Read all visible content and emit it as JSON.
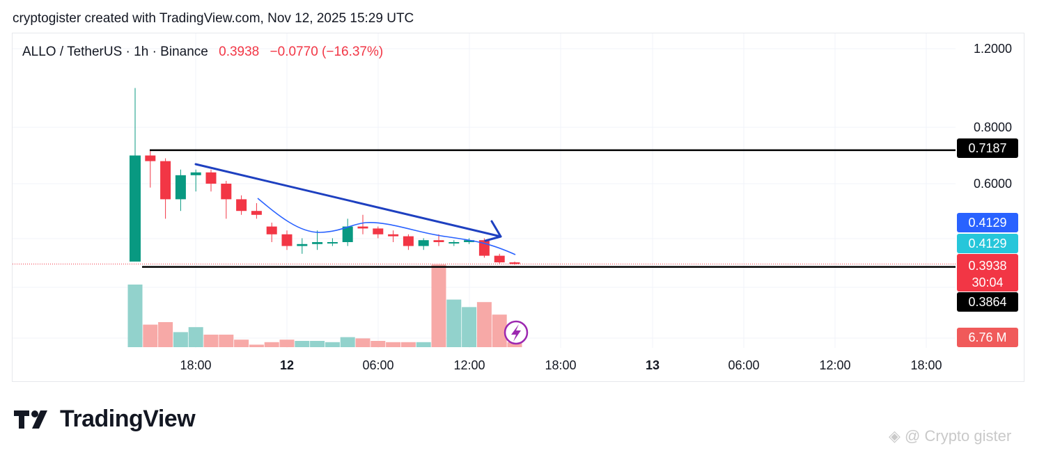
{
  "header": {
    "attribution": "cryptogister created with TradingView.com, Nov 12, 2025 15:29 UTC"
  },
  "legend": {
    "symbol": "ALLO / TetherUS · 1h · Binance",
    "price": "0.3938",
    "change": "−0.0770 (−16.37%)"
  },
  "colors": {
    "up": "#089981",
    "down": "#f23645",
    "up_volume": "#92d2cc",
    "down_volume": "#f7a9a7",
    "trendline": "#1e40c0",
    "ma_line": "#2962ff",
    "level_line": "#000000"
  },
  "chart_data": {
    "type": "candlestick",
    "y_axis_ticks": [
      "1.2000",
      "0.8000",
      "0.6000"
    ],
    "y_axis_tick_values": [
      1.2,
      0.8,
      0.6
    ],
    "x_axis_ticks": [
      {
        "label": "18:00",
        "bold": false
      },
      {
        "label": "12",
        "bold": true
      },
      {
        "label": "06:00",
        "bold": false
      },
      {
        "label": "12:00",
        "bold": false
      },
      {
        "label": "18:00",
        "bold": false
      },
      {
        "label": "13",
        "bold": true
      },
      {
        "label": "06:00",
        "bold": false
      },
      {
        "label": "12:00",
        "bold": false
      },
      {
        "label": "18:00",
        "bold": false
      }
    ],
    "candles": [
      {
        "o": 0.4,
        "h": 1.0,
        "l": 0.4,
        "c": 0.7,
        "v": 0.25
      },
      {
        "o": 0.7,
        "h": 0.72,
        "l": 0.59,
        "c": 0.68,
        "v": 0.09
      },
      {
        "o": 0.68,
        "h": 0.69,
        "l": 0.51,
        "c": 0.56,
        "v": 0.1
      },
      {
        "o": 0.56,
        "h": 0.65,
        "l": 0.53,
        "c": 0.63,
        "v": 0.06
      },
      {
        "o": 0.63,
        "h": 0.65,
        "l": 0.58,
        "c": 0.64,
        "v": 0.08
      },
      {
        "o": 0.64,
        "h": 0.65,
        "l": 0.58,
        "c": 0.6,
        "v": 0.05
      },
      {
        "o": 0.6,
        "h": 0.61,
        "l": 0.51,
        "c": 0.56,
        "v": 0.05
      },
      {
        "o": 0.56,
        "h": 0.57,
        "l": 0.52,
        "c": 0.53,
        "v": 0.03
      },
      {
        "o": 0.53,
        "h": 0.55,
        "l": 0.51,
        "c": 0.52,
        "v": 0.01
      },
      {
        "o": 0.49,
        "h": 0.5,
        "l": 0.45,
        "c": 0.47,
        "v": 0.02
      },
      {
        "o": 0.47,
        "h": 0.48,
        "l": 0.43,
        "c": 0.44,
        "v": 0.03
      },
      {
        "o": 0.44,
        "h": 0.46,
        "l": 0.42,
        "c": 0.445,
        "v": 0.025
      },
      {
        "o": 0.445,
        "h": 0.48,
        "l": 0.43,
        "c": 0.45,
        "v": 0.025
      },
      {
        "o": 0.45,
        "h": 0.46,
        "l": 0.44,
        "c": 0.45,
        "v": 0.02
      },
      {
        "o": 0.45,
        "h": 0.51,
        "l": 0.44,
        "c": 0.49,
        "v": 0.04
      },
      {
        "o": 0.49,
        "h": 0.52,
        "l": 0.47,
        "c": 0.485,
        "v": 0.035
      },
      {
        "o": 0.485,
        "h": 0.49,
        "l": 0.46,
        "c": 0.47,
        "v": 0.025
      },
      {
        "o": 0.47,
        "h": 0.48,
        "l": 0.45,
        "c": 0.465,
        "v": 0.02
      },
      {
        "o": 0.465,
        "h": 0.47,
        "l": 0.43,
        "c": 0.44,
        "v": 0.02
      },
      {
        "o": 0.44,
        "h": 0.46,
        "l": 0.43,
        "c": 0.455,
        "v": 0.02
      },
      {
        "o": 0.455,
        "h": 0.47,
        "l": 0.44,
        "c": 0.45,
        "v": 0.33
      },
      {
        "o": 0.45,
        "h": 0.455,
        "l": 0.44,
        "c": 0.45,
        "v": 0.19
      },
      {
        "o": 0.45,
        "h": 0.46,
        "l": 0.445,
        "c": 0.455,
        "v": 0.16
      },
      {
        "o": 0.455,
        "h": 0.46,
        "l": 0.41,
        "c": 0.415,
        "v": 0.18
      },
      {
        "o": 0.415,
        "h": 0.42,
        "l": 0.395,
        "c": 0.398,
        "v": 0.13
      },
      {
        "o": 0.398,
        "h": 0.4,
        "l": 0.392,
        "c": 0.3938,
        "v": 0.02
      }
    ],
    "levels": [
      0.7187,
      0.3864
    ],
    "price_labels": [
      {
        "text": "0.7187",
        "bg": "#000000",
        "fg": "#ffffff",
        "value": 0.7187
      },
      {
        "text": "0.4129",
        "bg": "#2962ff",
        "fg": "#ffffff",
        "value": 0.4129,
        "offset": -1
      },
      {
        "text": "0.4129",
        "bg": "#26c6da",
        "fg": "#ffffff",
        "value": 0.4129,
        "offset": 0
      },
      {
        "text": "0.3938",
        "bg": "#f23645",
        "fg": "#ffffff",
        "value": 0.3938,
        "countdown": "30:04"
      },
      {
        "text": "0.3864",
        "bg": "#000000",
        "fg": "#ffffff",
        "value": 0.3864,
        "offset": 1
      }
    ],
    "volume_label": {
      "text": "6.76 M",
      "bg": "#f05a5a",
      "fg": "#ffffff"
    }
  },
  "brand": {
    "name": "TradingView"
  },
  "watermark": {
    "text": "@ Crypto gister"
  }
}
